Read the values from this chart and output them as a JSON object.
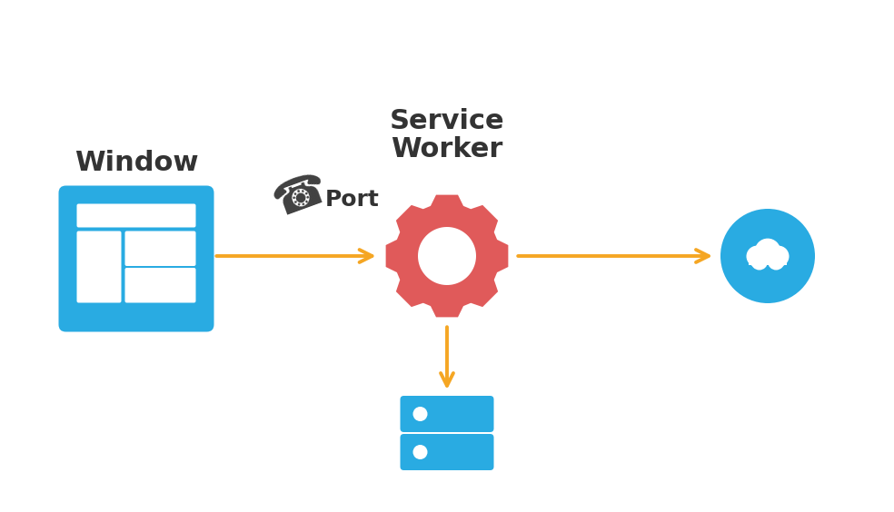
{
  "bg_color": "#ffffff",
  "blue_color": "#29ABE2",
  "red_color": "#E05A5A",
  "arrow_color": "#F5A623",
  "dark_gray": "#404040",
  "text_color": "#333333",
  "window_label": "Window",
  "service_label_line1": "Service",
  "service_label_line2": "Worker",
  "port_label": "Port",
  "figsize": [
    9.84,
    5.64
  ],
  "dpi": 100
}
